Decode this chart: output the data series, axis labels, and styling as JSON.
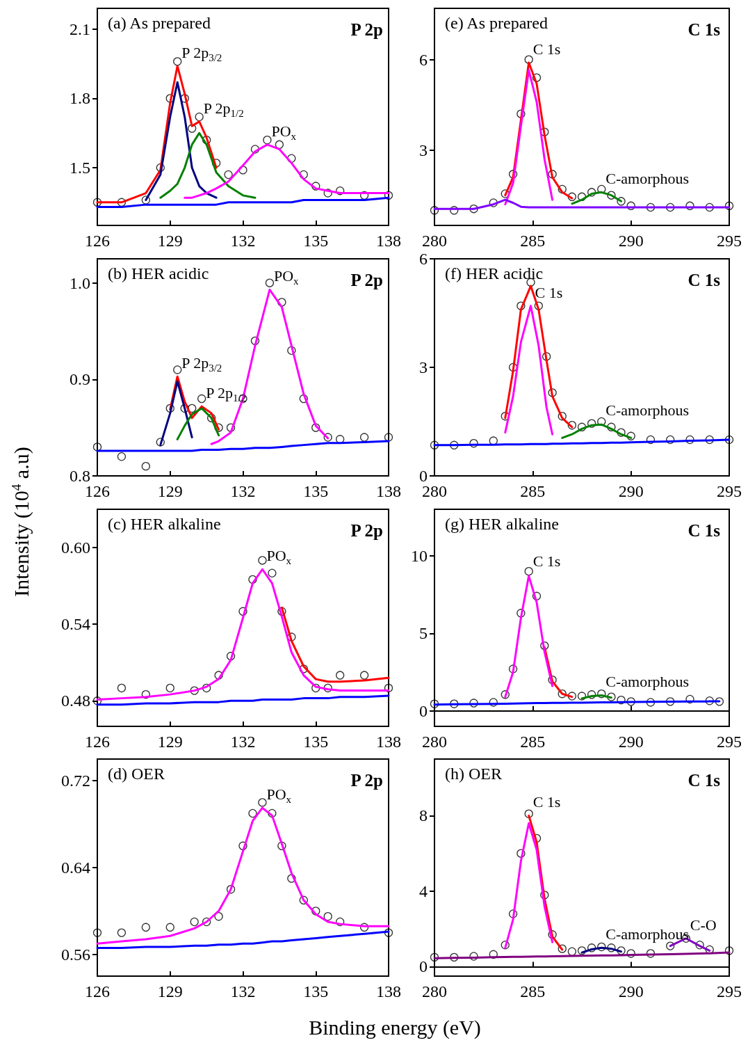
{
  "chart_data": [
    {
      "type": "line",
      "title": "(a) As prepared",
      "marker": "none",
      "annotations": [
        "P 2p",
        {
          "text": "P 2p$_{3/2}$",
          "x": 129.3,
          "y": 1.94
        },
        {
          "text": "P 2p$_{1/2}$",
          "x": 130.2,
          "y": 1.7
        },
        {
          "text": "PO$_{x}$",
          "x": 133,
          "y": 1.6
        }
      ],
      "xlim": [
        126,
        138
      ],
      "xticks": [
        126,
        129,
        132,
        135,
        138
      ],
      "ylim": [
        1.25,
        2.19
      ],
      "yticks": [
        1.5,
        1.8,
        2.1
      ],
      "x": [
        126,
        127,
        128,
        128.6,
        129,
        129.3,
        129.6,
        129.9,
        130.2,
        130.5,
        130.9,
        131.4,
        132,
        132.5,
        133,
        133.5,
        134,
        134.5,
        135,
        135.5,
        136,
        137,
        138
      ],
      "series": [
        {
          "type": "scatter",
          "marker": "circle",
          "color": "#000000",
          "values": [
            1.35,
            1.35,
            1.36,
            1.5,
            1.8,
            1.96,
            1.8,
            1.67,
            1.72,
            1.62,
            1.52,
            1.47,
            1.49,
            1.58,
            1.62,
            1.6,
            1.54,
            1.47,
            1.42,
            1.39,
            1.4,
            1.38,
            1.38
          ]
        },
        {
          "color": "#ff0000",
          "values": [
            1.35,
            1.35,
            1.39,
            1.49,
            1.78,
            1.94,
            1.82,
            1.68,
            1.7,
            1.63,
            1.5,
            null,
            null,
            null,
            null,
            null,
            null,
            null,
            null,
            null,
            null,
            null,
            null
          ]
        },
        {
          "color": "#000080",
          "values": [
            null,
            null,
            1.36,
            1.47,
            1.72,
            1.87,
            1.72,
            1.5,
            1.42,
            1.39,
            1.37,
            null,
            null,
            null,
            null,
            null,
            null,
            null,
            null,
            null,
            null,
            null,
            null
          ]
        },
        {
          "color": "#008000",
          "values": [
            null,
            null,
            null,
            1.37,
            1.4,
            1.43,
            1.5,
            1.6,
            1.65,
            1.6,
            1.48,
            1.42,
            1.38,
            1.37,
            null,
            null,
            null,
            null,
            null,
            null,
            null,
            null,
            null
          ]
        },
        {
          "color": "#ff00ff",
          "values": [
            null,
            null,
            null,
            null,
            null,
            null,
            1.37,
            1.37,
            1.38,
            1.39,
            1.41,
            1.44,
            1.51,
            1.57,
            1.6,
            1.58,
            1.52,
            1.45,
            1.41,
            1.4,
            1.39,
            1.39,
            1.39
          ]
        },
        {
          "color": "#0000ff",
          "values": [
            1.33,
            1.33,
            1.34,
            1.34,
            1.34,
            1.34,
            1.34,
            1.34,
            1.34,
            1.34,
            1.34,
            1.35,
            1.35,
            1.35,
            1.35,
            1.35,
            1.35,
            1.36,
            1.36,
            1.36,
            1.36,
            1.36,
            1.37
          ]
        }
      ]
    },
    {
      "type": "line",
      "title": "(b) HER acidic",
      "marker": "none",
      "annotations": [
        "P 2p",
        {
          "text": "P 2p$_{3/2}$",
          "x": 129.3,
          "y": 0.903
        },
        {
          "text": "P 2p$_{1/2}$",
          "x": 130.3,
          "y": 0.872
        },
        {
          "text": "PO$_{x}$",
          "x": 133.1,
          "y": 0.993
        }
      ],
      "xlim": [
        126,
        138
      ],
      "xticks": [
        126,
        129,
        132,
        135,
        138
      ],
      "ylim": [
        0.8,
        1.025
      ],
      "yticks": [
        0.8,
        0.9,
        {
          "value": 1.0,
          "label": "1.0"
        }
      ],
      "x": [
        126,
        127,
        128,
        128.6,
        129,
        129.3,
        129.6,
        129.9,
        130.3,
        130.7,
        131,
        131.5,
        132,
        132.5,
        133.1,
        133.6,
        134,
        134.5,
        135,
        135.5,
        136,
        137,
        138
      ],
      "series": [
        {
          "type": "scatter",
          "marker": "circle",
          "color": "#000000",
          "values": [
            0.83,
            0.82,
            0.81,
            0.835,
            0.87,
            0.91,
            0.87,
            0.87,
            0.88,
            0.86,
            0.85,
            0.85,
            0.88,
            0.94,
            1.0,
            0.98,
            0.93,
            0.88,
            0.85,
            0.84,
            0.838,
            0.84,
            0.84
          ]
        },
        {
          "color": "#ff0000",
          "values": [
            null,
            null,
            null,
            null,
            0.869,
            0.903,
            0.877,
            0.86,
            0.872,
            0.865,
            0.848,
            null,
            null,
            null,
            null,
            null,
            null,
            null,
            null,
            null,
            null,
            null,
            null
          ]
        },
        {
          "color": "#000080",
          "values": [
            null,
            null,
            null,
            0.832,
            0.865,
            0.898,
            0.87,
            0.84,
            null,
            null,
            null,
            null,
            null,
            null,
            null,
            null,
            null,
            null,
            null,
            null,
            null,
            null,
            null
          ]
        },
        {
          "color": "#008000",
          "values": [
            null,
            null,
            null,
            null,
            null,
            0.838,
            0.852,
            0.864,
            0.87,
            0.86,
            0.842,
            null,
            null,
            null,
            null,
            null,
            null,
            null,
            null,
            null,
            null,
            null,
            null
          ]
        },
        {
          "color": "#ff00ff",
          "values": [
            null,
            null,
            null,
            null,
            null,
            null,
            null,
            null,
            null,
            0.833,
            0.836,
            0.845,
            0.88,
            0.935,
            0.993,
            0.975,
            0.935,
            0.885,
            0.852,
            0.839,
            null,
            null,
            null
          ]
        },
        {
          "color": "#0000ff",
          "values": [
            0.826,
            0.826,
            0.826,
            0.826,
            0.826,
            0.826,
            0.826,
            0.826,
            0.827,
            0.827,
            0.827,
            0.828,
            0.828,
            0.829,
            0.829,
            0.83,
            0.831,
            0.832,
            0.833,
            0.834,
            0.834,
            0.835,
            0.836
          ]
        }
      ]
    },
    {
      "type": "line",
      "title": "(c) HER alkaline",
      "ylabel": "Intensity (10$^{4}$ a.u)",
      "marker": "none",
      "annotations": [
        "P 2p",
        {
          "text": "PO$_{x}$",
          "x": 132.8,
          "y": 0.583
        }
      ],
      "xlim": [
        126,
        138
      ],
      "xticks": [
        126,
        129,
        132,
        135,
        138
      ],
      "ylim": [
        0.46,
        0.63
      ],
      "yticks": [
        0.48,
        0.54,
        {
          "value": 0.6,
          "label": "0.60"
        }
      ],
      "x": [
        126,
        127,
        128,
        129,
        130,
        130.5,
        131,
        131.5,
        132,
        132.4,
        132.8,
        133.2,
        133.6,
        134,
        134.5,
        135,
        135.5,
        136,
        137,
        138
      ],
      "series": [
        {
          "type": "scatter",
          "marker": "circle",
          "color": "#000000",
          "values": [
            0.48,
            0.49,
            0.485,
            0.49,
            0.488,
            0.49,
            0.5,
            0.515,
            0.55,
            0.575,
            0.59,
            0.58,
            0.55,
            0.53,
            0.505,
            0.49,
            0.49,
            0.5,
            0.5,
            0.49
          ]
        },
        {
          "color": "#ff0000",
          "values": [
            null,
            null,
            null,
            null,
            null,
            null,
            null,
            null,
            null,
            null,
            null,
            null,
            0.553,
            0.527,
            0.507,
            0.497,
            0.495,
            0.495,
            0.496,
            0.498
          ]
        },
        {
          "color": "#ff00ff",
          "values": [
            0.481,
            0.482,
            0.483,
            0.485,
            0.488,
            0.491,
            0.497,
            0.512,
            0.545,
            0.572,
            0.583,
            0.572,
            0.546,
            0.518,
            0.5,
            0.491,
            0.489,
            0.488,
            0.488,
            0.488
          ]
        },
        {
          "color": "#0000ff",
          "values": [
            0.477,
            0.477,
            0.478,
            0.478,
            0.479,
            0.479,
            0.479,
            0.48,
            0.48,
            0.48,
            0.481,
            0.481,
            0.481,
            0.481,
            0.482,
            0.482,
            0.482,
            0.483,
            0.483,
            0.484
          ]
        }
      ]
    },
    {
      "type": "line",
      "title": "(d) OER",
      "xlabel": "Binding energy (eV)",
      "marker": "none",
      "annotations": [
        "P 2p",
        {
          "text": "PO$_{x}$",
          "x": 132.8,
          "y": 0.695
        }
      ],
      "xlim": [
        126,
        138
      ],
      "xticks": [
        126,
        129,
        132,
        135,
        138
      ],
      "ylim": [
        0.54,
        0.74
      ],
      "yticks": [
        0.56,
        0.64,
        0.72
      ],
      "x": [
        126,
        127,
        128,
        129,
        130,
        130.5,
        131,
        131.5,
        132,
        132.4,
        132.8,
        133.2,
        133.6,
        134,
        134.5,
        135,
        135.5,
        136,
        137,
        138
      ],
      "series": [
        {
          "type": "scatter",
          "marker": "circle",
          "color": "#000000",
          "values": [
            0.58,
            0.58,
            0.585,
            0.585,
            0.59,
            0.59,
            0.595,
            0.62,
            0.66,
            0.69,
            0.7,
            0.69,
            0.66,
            0.63,
            0.61,
            0.6,
            0.595,
            0.59,
            0.585,
            0.58
          ]
        },
        {
          "color": "#ff00ff",
          "values": [
            0.57,
            0.572,
            0.574,
            0.577,
            0.584,
            0.59,
            0.6,
            0.62,
            0.655,
            0.683,
            0.695,
            0.688,
            0.662,
            0.635,
            0.61,
            0.597,
            0.59,
            0.588,
            0.586,
            0.586
          ]
        },
        {
          "color": "#0000ff",
          "values": [
            0.566,
            0.566,
            0.567,
            0.567,
            0.568,
            0.568,
            0.569,
            0.569,
            0.57,
            0.57,
            0.571,
            0.572,
            0.572,
            0.573,
            0.574,
            0.575,
            0.576,
            0.577,
            0.579,
            0.581
          ]
        }
      ]
    },
    {
      "type": "line",
      "title": "(e) As prepared",
      "marker": "none",
      "annotations": [
        "C 1s",
        {
          "text": "C 1s",
          "x": 284.8,
          "y": 5.9
        },
        {
          "text": "C-amorphous",
          "x": 288.5,
          "y": 1.6
        }
      ],
      "xlim": [
        280,
        295
      ],
      "xticks": [
        280,
        285,
        290,
        295
      ],
      "ylim": [
        0.5,
        7.7
      ],
      "yticks": [
        3,
        6
      ],
      "x": [
        280,
        281,
        282,
        283,
        283.6,
        284,
        284.4,
        284.8,
        285.2,
        285.6,
        286,
        286.5,
        287,
        287.5,
        288,
        288.5,
        289,
        289.5,
        290,
        291,
        292,
        293,
        294,
        295
      ],
      "series": [
        {
          "type": "scatter",
          "marker": "circle",
          "color": "#000000",
          "values": [
            1.0,
            1.0,
            1.05,
            1.25,
            1.55,
            2.2,
            4.2,
            6.0,
            5.4,
            3.6,
            2.2,
            1.7,
            1.45,
            1.45,
            1.6,
            1.7,
            1.5,
            1.3,
            1.15,
            1.1,
            1.1,
            1.15,
            1.1,
            1.15
          ]
        },
        {
          "color": "#ff0000",
          "values": [
            null,
            null,
            null,
            null,
            1.5,
            2.1,
            4.0,
            5.9,
            5.2,
            3.5,
            2.1,
            1.6,
            1.4,
            null,
            null,
            null,
            null,
            null,
            null,
            null,
            null,
            null,
            null,
            null
          ]
        },
        {
          "color": "#ff00ff",
          "values": [
            null,
            null,
            null,
            null,
            1.2,
            1.9,
            3.8,
            5.65,
            4.6,
            2.7,
            1.35,
            null,
            null,
            null,
            null,
            null,
            null,
            null,
            null,
            null,
            null,
            null,
            null,
            null
          ]
        },
        {
          "color": "#008000",
          "values": [
            null,
            null,
            null,
            null,
            null,
            null,
            null,
            null,
            null,
            null,
            null,
            null,
            1.22,
            1.35,
            1.55,
            1.6,
            1.5,
            1.3,
            null,
            null,
            null,
            null,
            null,
            null
          ]
        },
        {
          "color": "#8000ff",
          "values": [
            1.05,
            1.05,
            1.05,
            1.2,
            1.35,
            1.25,
            1.12,
            1.1,
            1.1,
            1.1,
            1.1,
            1.1,
            1.1,
            1.1,
            1.1,
            1.1,
            1.1,
            1.1,
            1.1,
            1.1,
            1.1,
            1.1,
            1.1,
            1.1
          ]
        }
      ]
    },
    {
      "type": "line",
      "title": "(f) HER acidic",
      "marker": "none",
      "annotations": [
        "C 1s",
        {
          "text": "C 1s",
          "x": 284.9,
          "y": 4.7
        },
        {
          "text": "C-amorphous",
          "x": 288.5,
          "y": 1.45
        }
      ],
      "xlim": [
        280,
        295
      ],
      "xticks": [
        280,
        285,
        290,
        295
      ],
      "ylim": [
        0,
        6
      ],
      "yticks": [
        0,
        3,
        6
      ],
      "x": [
        280,
        281,
        282,
        283,
        283.6,
        284,
        284.4,
        284.9,
        285.3,
        285.7,
        286,
        286.5,
        287,
        287.5,
        288,
        288.5,
        289,
        289.5,
        290,
        291,
        292,
        293,
        294,
        295
      ],
      "series": [
        {
          "type": "scatter",
          "marker": "circle",
          "color": "#000000",
          "values": [
            0.85,
            0.85,
            0.9,
            0.97,
            1.65,
            3.0,
            4.7,
            5.35,
            4.7,
            3.3,
            2.3,
            1.65,
            1.4,
            1.35,
            1.45,
            1.5,
            1.35,
            1.2,
            1.1,
            1.0,
            1.0,
            1.0,
            1.0,
            1.0
          ]
        },
        {
          "color": "#ff0000",
          "values": [
            null,
            null,
            null,
            null,
            1.6,
            2.9,
            4.6,
            5.25,
            4.6,
            3.2,
            2.2,
            1.6,
            1.35,
            null,
            null,
            null,
            null,
            null,
            null,
            null,
            null,
            null,
            null,
            null
          ]
        },
        {
          "color": "#ff00ff",
          "values": [
            null,
            null,
            null,
            null,
            1.2,
            2.2,
            3.7,
            4.7,
            3.6,
            1.9,
            1.15,
            null,
            null,
            null,
            null,
            null,
            null,
            null,
            null,
            null,
            null,
            null,
            null,
            null
          ]
        },
        {
          "color": "#008000",
          "values": [
            null,
            null,
            null,
            null,
            null,
            null,
            null,
            null,
            null,
            null,
            null,
            1.05,
            1.15,
            1.3,
            1.4,
            1.42,
            1.3,
            1.15,
            1.05,
            null,
            null,
            null,
            null,
            null
          ]
        },
        {
          "color": "#0000ff",
          "values": [
            0.85,
            0.85,
            0.86,
            0.86,
            0.87,
            0.87,
            0.87,
            0.88,
            0.88,
            0.88,
            0.89,
            0.89,
            0.9,
            0.9,
            0.91,
            0.91,
            0.92,
            0.92,
            0.93,
            0.94,
            0.95,
            0.97,
            0.98,
            1.0
          ]
        }
      ]
    },
    {
      "type": "line",
      "title": "(g) HER alkaline",
      "marker": "none",
      "annotations": [
        "C 1s",
        {
          "text": "C 1s",
          "x": 284.8,
          "y": 8.8
        },
        {
          "text": "C-amorphous",
          "x": 288.5,
          "y": 1.0
        }
      ],
      "xlim": [
        280,
        295
      ],
      "xticks": [
        280,
        285,
        290,
        295
      ],
      "ylim": [
        -1,
        13
      ],
      "yticks": [
        0,
        5,
        10
      ],
      "x": [
        280,
        281,
        282,
        283,
        283.6,
        284,
        284.4,
        284.8,
        285.2,
        285.6,
        286,
        286.5,
        287,
        287.5,
        288,
        288.5,
        289,
        289.5,
        290,
        291,
        292,
        293,
        294,
        294.5
      ],
      "series": [
        {
          "type": "scatter",
          "marker": "circle",
          "color": "#000000",
          "values": [
            0.45,
            0.45,
            0.5,
            0.55,
            1.05,
            2.7,
            6.3,
            9.0,
            7.4,
            4.2,
            2.0,
            1.1,
            0.95,
            0.95,
            1.05,
            1.1,
            0.9,
            0.7,
            0.6,
            0.55,
            0.6,
            0.75,
            0.65,
            0.6
          ]
        },
        {
          "color": "#ff0000",
          "values": [
            null,
            null,
            null,
            null,
            null,
            null,
            null,
            null,
            null,
            4.1,
            1.9,
            1.1,
            0.9,
            null,
            null,
            null,
            null,
            null,
            null,
            null,
            null,
            null,
            null,
            null
          ]
        },
        {
          "color": "#ff00ff",
          "values": [
            null,
            null,
            null,
            null,
            0.9,
            2.5,
            6.0,
            8.7,
            7.0,
            3.8,
            1.6,
            null,
            null,
            null,
            null,
            null,
            null,
            null,
            null,
            null,
            null,
            null,
            null,
            null
          ]
        },
        {
          "color": "#008000",
          "values": [
            null,
            null,
            null,
            null,
            null,
            null,
            null,
            null,
            null,
            null,
            null,
            null,
            null,
            0.8,
            0.95,
            1.0,
            0.85,
            null,
            null,
            null,
            null,
            null,
            null,
            null
          ]
        },
        {
          "color": "#0000ff",
          "values": [
            0.4,
            0.42,
            0.44,
            0.45,
            0.46,
            0.47,
            0.48,
            0.49,
            0.5,
            0.5,
            0.51,
            0.52,
            0.53,
            0.53,
            0.54,
            0.55,
            0.55,
            0.56,
            0.57,
            0.58,
            0.59,
            0.6,
            0.61,
            0.62
          ]
        }
      ]
    },
    {
      "type": "line",
      "title": "(h) OER",
      "marker": "none",
      "annotations": [
        "C 1s",
        {
          "text": "C 1s",
          "x": 284.8,
          "y": 8.0
        },
        {
          "text": "C-amorphous",
          "x": 288.5,
          "y": 1.0
        },
        {
          "text": "C-O",
          "x": 292.8,
          "y": 1.5
        }
      ],
      "xlim": [
        280,
        295
      ],
      "xticks": [
        280,
        285,
        290,
        295
      ],
      "ylim": [
        -0.5,
        11
      ],
      "yticks": [
        0,
        4,
        8
      ],
      "x": [
        280,
        281,
        282,
        283,
        283.6,
        284,
        284.4,
        284.8,
        285.2,
        285.6,
        286,
        286.5,
        287,
        287.5,
        288,
        288.5,
        289,
        289.5,
        290,
        291,
        292,
        292.8,
        293.5,
        294,
        295
      ],
      "series": [
        {
          "type": "scatter",
          "marker": "circle",
          "color": "#000000",
          "values": [
            0.5,
            0.5,
            0.55,
            0.65,
            1.15,
            2.8,
            6.0,
            8.1,
            6.8,
            3.8,
            1.7,
            0.95,
            0.8,
            0.85,
            1.0,
            1.05,
            1.0,
            0.85,
            0.7,
            0.7,
            1.1,
            1.5,
            1.15,
            0.9,
            0.85
          ]
        },
        {
          "color": "#ff0000",
          "values": [
            null,
            null,
            null,
            null,
            null,
            null,
            null,
            8.0,
            6.6,
            3.6,
            1.6,
            0.9,
            null,
            null,
            null,
            null,
            null,
            null,
            null,
            null,
            null,
            null,
            null,
            null,
            null
          ]
        },
        {
          "color": "#ff00ff",
          "values": [
            null,
            null,
            null,
            null,
            1.0,
            2.5,
            5.6,
            7.6,
            6.2,
            3.2,
            1.3,
            null,
            null,
            null,
            null,
            null,
            null,
            null,
            null,
            null,
            null,
            null,
            null,
            null,
            null
          ]
        },
        {
          "color": "#000080",
          "values": [
            null,
            null,
            null,
            null,
            null,
            null,
            null,
            null,
            null,
            null,
            null,
            null,
            null,
            0.75,
            0.92,
            1.0,
            0.95,
            0.8,
            null,
            null,
            null,
            null,
            null,
            null,
            null
          ]
        },
        {
          "color": "#8000c0",
          "values": [
            null,
            null,
            null,
            null,
            null,
            null,
            null,
            null,
            null,
            null,
            null,
            null,
            null,
            null,
            null,
            null,
            null,
            null,
            null,
            null,
            1.1,
            1.5,
            1.1,
            0.85,
            null
          ]
        },
        {
          "color": "#800080",
          "values": [
            0.45,
            0.47,
            0.48,
            0.5,
            0.51,
            0.52,
            0.52,
            0.53,
            0.54,
            0.54,
            0.55,
            0.56,
            0.57,
            0.58,
            0.59,
            0.6,
            0.6,
            0.61,
            0.62,
            0.64,
            0.66,
            0.68,
            0.7,
            0.71,
            0.75
          ]
        }
      ]
    }
  ]
}
